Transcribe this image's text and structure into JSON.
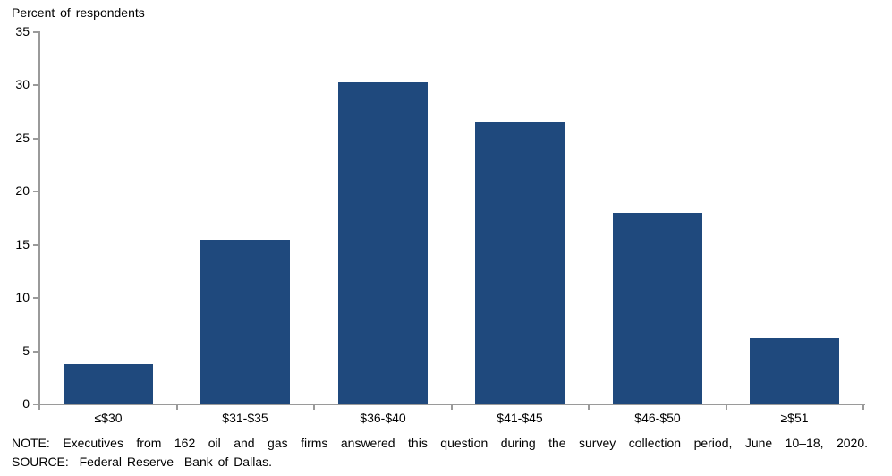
{
  "chart_data": {
    "type": "bar",
    "title": "",
    "ylabel": "Percent of respondents",
    "xlabel": "",
    "categories": [
      "≤$30",
      "$31-$35",
      "$36-$40",
      "$41-$45",
      "$46-$50",
      "≥$51"
    ],
    "values": [
      3.7,
      15.4,
      30.2,
      26.5,
      17.9,
      6.1
    ],
    "ylim": [
      0,
      35
    ],
    "yticks": [
      0,
      5,
      10,
      15,
      20,
      25,
      30,
      35
    ],
    "grid": false,
    "legend": "none",
    "bar_color": "#1f497d",
    "axis_color": "#9a9a9a",
    "text_color": "#000000"
  },
  "footnote": {
    "note": "NOTE: Executives from 162 oil and gas firms answered this question during the survey collection period, June 10–18, 2020.",
    "source": "SOURCE:  Federal Reserve  Bank of Dallas."
  }
}
